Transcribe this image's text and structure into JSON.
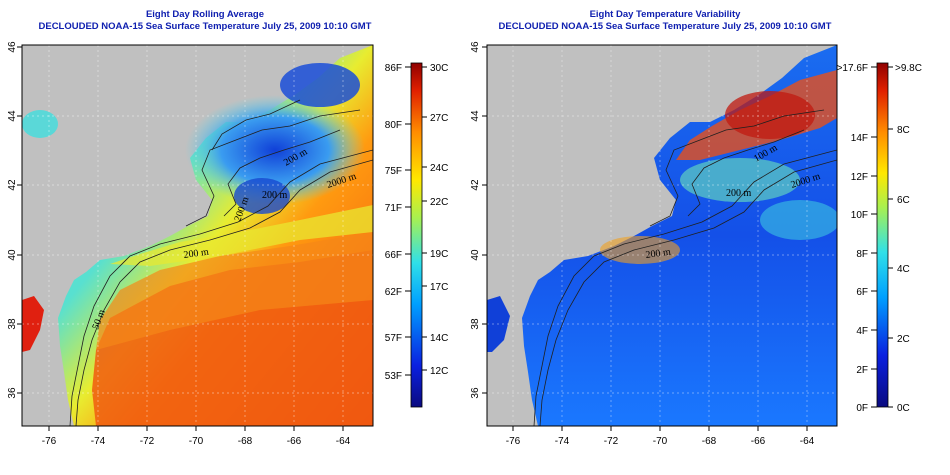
{
  "left_panel": {
    "title_line1": "Eight Day Rolling Average",
    "title_line2": "DECLOUDED NOAA-15 Sea Surface Temperature July 25, 2009 10:10 GMT",
    "lat_ticks": [
      "46",
      "44",
      "42",
      "40",
      "38",
      "36"
    ],
    "lon_ticks": [
      "-76",
      "-74",
      "-72",
      "-70",
      "-68",
      "-66",
      "-64"
    ],
    "contour_labels": [
      "2000 m",
      "200 m",
      "200 m",
      "50 m",
      "200 m",
      "200 m"
    ],
    "colorbar_f_labels": [
      "86F",
      "80F",
      "75F",
      "71F",
      "66F",
      "62F",
      "57F",
      "53F"
    ],
    "colorbar_c_labels": [
      "30C",
      "27C",
      "24C",
      "22C",
      "19C",
      "17C",
      "14C",
      "12C"
    ]
  },
  "right_panel": {
    "title_line1": "Eight Day Temperature Variability",
    "title_line2": "DECLOUDED NOAA-15 Sea Surface Temperature July 25, 2009 10:10 GMT",
    "lat_ticks": [
      "46",
      "44",
      "42",
      "40",
      "38",
      "36"
    ],
    "lon_ticks": [
      "-76",
      "-74",
      "-72",
      "-70",
      "-68",
      "-66",
      "-64"
    ],
    "contour_labels": [
      "2000 m",
      "200 m",
      "200 m",
      "100 m"
    ],
    "colorbar_f_labels": [
      ">17.6F",
      "14F",
      "12F",
      "10F",
      "8F",
      "6F",
      "4F",
      "2F",
      "0F"
    ],
    "colorbar_c_labels": [
      ">9.8C",
      "8C",
      "6C",
      "4C",
      "2C",
      "0C"
    ]
  },
  "colors": {
    "land": "#c0c0c0",
    "title": "#1020b0",
    "colormap": [
      "#0a0a80",
      "#0a14d0",
      "#0a50ff",
      "#00b4ff",
      "#40e6d0",
      "#b4f050",
      "#ffe800",
      "#ff9c00",
      "#f03c00",
      "#a00000"
    ]
  }
}
